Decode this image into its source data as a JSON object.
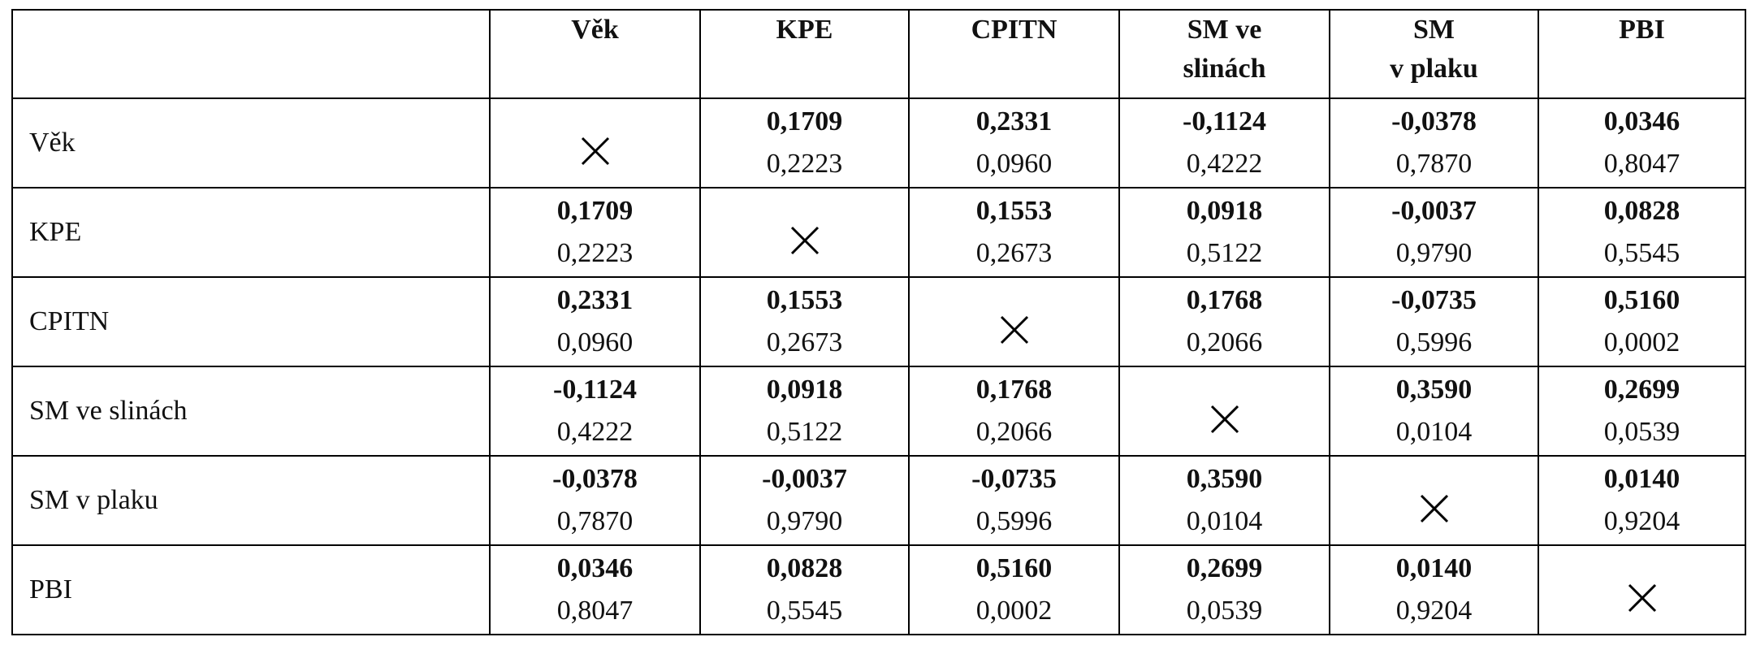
{
  "table": {
    "columns": [
      [
        "Věk"
      ],
      [
        "KPE"
      ],
      [
        "CPITN"
      ],
      [
        "SM ve",
        "slinách"
      ],
      [
        "SM",
        "v plaku"
      ],
      [
        "PBI"
      ]
    ],
    "rows": [
      {
        "label": "Věk",
        "cells": [
          null,
          {
            "r": "0,1709",
            "p": "0,2223"
          },
          {
            "r": "0,2331",
            "p": "0,0960"
          },
          {
            "r": "-0,1124",
            "p": "0,4222"
          },
          {
            "r": "-0,0378",
            "p": "0,7870"
          },
          {
            "r": "0,0346",
            "p": "0,8047"
          }
        ]
      },
      {
        "label": "KPE",
        "cells": [
          {
            "r": "0,1709",
            "p": "0,2223"
          },
          null,
          {
            "r": "0,1553",
            "p": "0,2673"
          },
          {
            "r": "0,0918",
            "p": "0,5122"
          },
          {
            "r": "-0,0037",
            "p": "0,9790"
          },
          {
            "r": "0,0828",
            "p": "0,5545"
          }
        ]
      },
      {
        "label": "CPITN",
        "cells": [
          {
            "r": "0,2331",
            "p": "0,0960"
          },
          {
            "r": "0,1553",
            "p": "0,2673"
          },
          null,
          {
            "r": "0,1768",
            "p": "0,2066"
          },
          {
            "r": "-0,0735",
            "p": "0,5996"
          },
          {
            "r": "0,5160",
            "p": "0,0002"
          }
        ]
      },
      {
        "label": "SM ve slinách",
        "cells": [
          {
            "r": "-0,1124",
            "p": "0,4222"
          },
          {
            "r": "0,0918",
            "p": "0,5122"
          },
          {
            "r": "0,1768",
            "p": "0,2066"
          },
          null,
          {
            "r": "0,3590",
            "p": "0,0104"
          },
          {
            "r": "0,2699",
            "p": "0,0539"
          }
        ]
      },
      {
        "label": "SM v plaku",
        "cells": [
          {
            "r": "-0,0378",
            "p": "0,7870"
          },
          {
            "r": "-0,0037",
            "p": "0,9790"
          },
          {
            "r": "-0,0735",
            "p": "0,5996"
          },
          {
            "r": "0,3590",
            "p": "0,0104"
          },
          null,
          {
            "r": "0,0140",
            "p": "0,9204"
          }
        ]
      },
      {
        "label": "PBI",
        "cells": [
          {
            "r": "0,0346",
            "p": "0,8047"
          },
          {
            "r": "0,0828",
            "p": "0,5545"
          },
          {
            "r": "0,5160",
            "p": "0,0002"
          },
          {
            "r": "0,2699",
            "p": "0,0539"
          },
          {
            "r": "0,0140",
            "p": "0,9204"
          },
          null
        ]
      }
    ]
  }
}
